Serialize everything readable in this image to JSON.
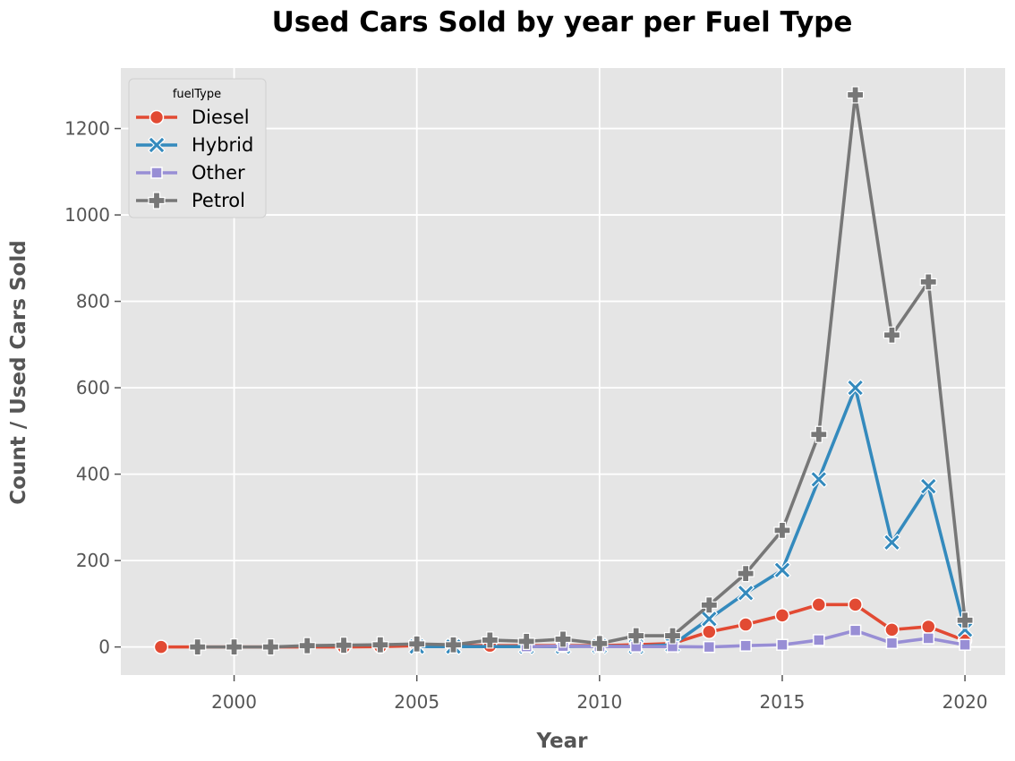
{
  "chart_data": {
    "type": "line",
    "title": "Used Cars Sold by year per Fuel Type",
    "xlabel": "Year",
    "ylabel": "Count / Used Cars Sold",
    "xlim": [
      1996.9,
      2021.1
    ],
    "ylim": [
      -65,
      1340
    ],
    "xticks": [
      2000,
      2005,
      2010,
      2015,
      2020
    ],
    "yticks": [
      0,
      200,
      400,
      600,
      800,
      1000,
      1200
    ],
    "grid": true,
    "legend": {
      "title": "fuelType",
      "placement": "top-left"
    },
    "colors": {
      "background": "#e5e5e5",
      "grid": "#ffffff"
    },
    "series": [
      {
        "name": "Diesel",
        "color": "#e24a33",
        "marker": "circle",
        "x": [
          1998,
          2003,
          2004,
          2005,
          2006,
          2007,
          2009,
          2010,
          2011,
          2012,
          2013,
          2014,
          2015,
          2016,
          2017,
          2018,
          2019,
          2020
        ],
        "y": [
          0,
          0,
          1,
          3,
          3,
          3,
          3,
          3,
          5,
          8,
          35,
          52,
          73,
          98,
          98,
          40,
          47,
          15
        ]
      },
      {
        "name": "Hybrid",
        "color": "#348abd",
        "marker": "x",
        "x": [
          2005,
          2006,
          2008,
          2009,
          2010,
          2011,
          2012,
          2013,
          2014,
          2015,
          2016,
          2017,
          2018,
          2019,
          2020
        ],
        "y": [
          1,
          1,
          1,
          1,
          2,
          1,
          5,
          65,
          125,
          178,
          388,
          600,
          242,
          372,
          40
        ]
      },
      {
        "name": "Other",
        "color": "#988ed5",
        "marker": "square",
        "x": [
          2008,
          2009,
          2010,
          2011,
          2012,
          2013,
          2014,
          2015,
          2016,
          2017,
          2018,
          2019,
          2020
        ],
        "y": [
          1,
          2,
          1,
          1,
          1,
          0,
          3,
          5,
          16,
          38,
          9,
          20,
          5
        ]
      },
      {
        "name": "Petrol",
        "color": "#777777",
        "marker": "plus",
        "x": [
          1999,
          2000,
          2001,
          2002,
          2003,
          2004,
          2005,
          2006,
          2007,
          2008,
          2009,
          2010,
          2011,
          2012,
          2013,
          2014,
          2015,
          2016,
          2017,
          2018,
          2019,
          2020
        ],
        "y": [
          0,
          0,
          0,
          3,
          4,
          5,
          7,
          5,
          16,
          13,
          18,
          8,
          26,
          26,
          97,
          170,
          270,
          492,
          1278,
          722,
          845,
          62
        ]
      }
    ]
  }
}
